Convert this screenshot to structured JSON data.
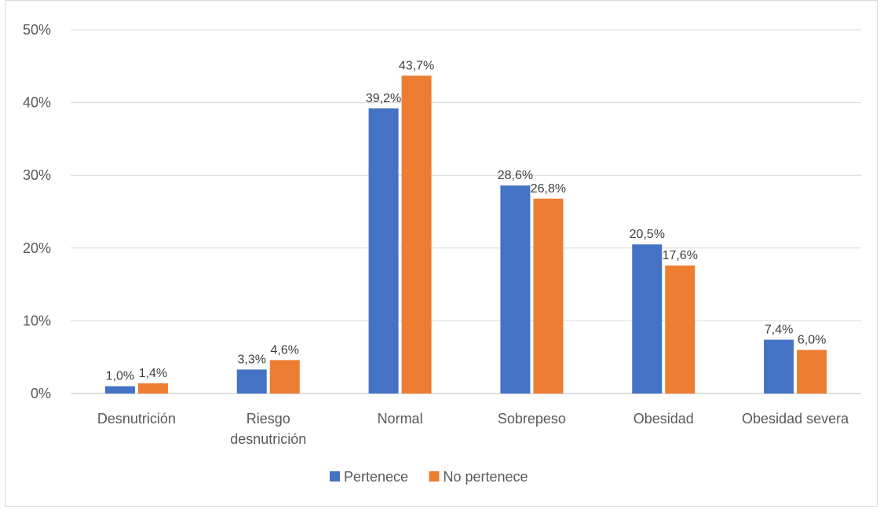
{
  "chart_data": {
    "type": "bar",
    "title": "",
    "categories": [
      [
        "Desnutrición"
      ],
      [
        "Riesgo",
        "desnutrición"
      ],
      [
        "Normal"
      ],
      [
        "Sobrepeso"
      ],
      [
        "Obesidad"
      ],
      [
        "Obesidad severa"
      ]
    ],
    "series": [
      {
        "name": "Pertenece",
        "color": "#4472c4",
        "values": [
          1.0,
          3.3,
          39.2,
          28.6,
          20.5,
          7.4
        ],
        "labels": [
          "1,0%",
          "3,3%",
          "39,2%",
          "28,6%",
          "20,5%",
          "7,4%"
        ]
      },
      {
        "name": "No pertenece",
        "color": "#ed7d31",
        "values": [
          1.4,
          4.6,
          43.7,
          26.8,
          17.6,
          6.0
        ],
        "labels": [
          "1,4%",
          "4,6%",
          "43,7%",
          "26,8%",
          "17,6%",
          "6,0%"
        ]
      }
    ],
    "y_ticks": [
      "0%",
      "10%",
      "20%",
      "30%",
      "40%",
      "50%"
    ],
    "ylim": [
      0,
      50
    ],
    "xlabel": "",
    "ylabel": "",
    "grid": true,
    "legend_position": "bottom"
  }
}
